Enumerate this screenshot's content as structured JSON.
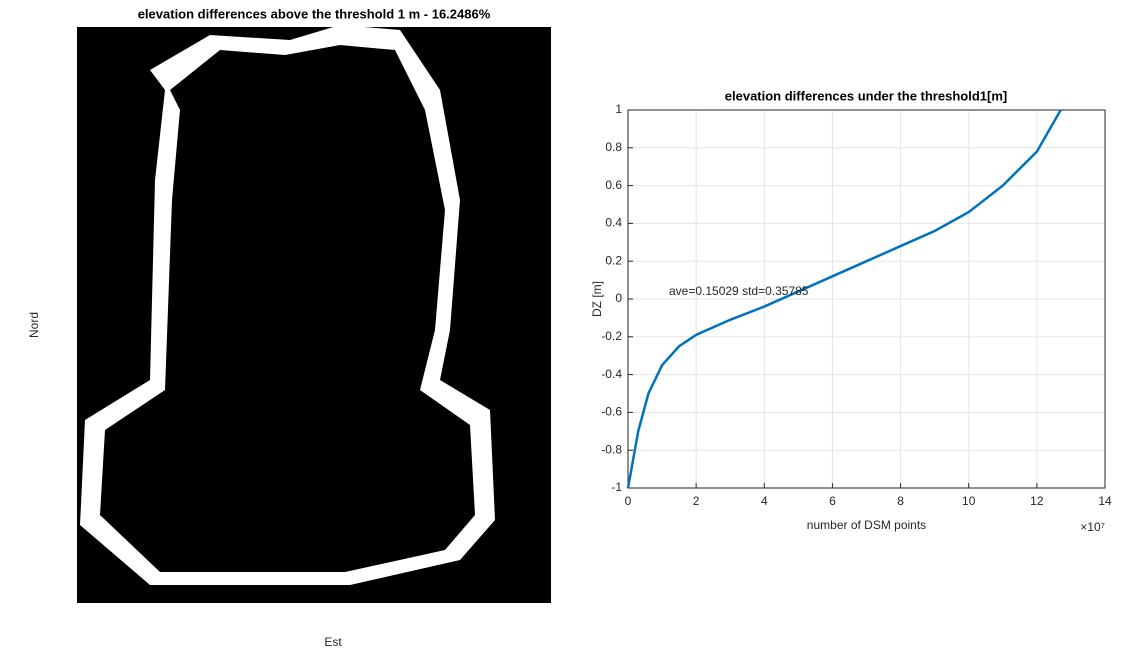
{
  "chart_data": [
    {
      "type": "image",
      "title": "elevation differences above the threshold 1 m - 16.2486%",
      "xlabel": "Est",
      "ylabel": "Nord"
    },
    {
      "type": "line",
      "title": "elevation differences under the threshold1[m]",
      "xlabel": "number of DSM points",
      "ylabel": "DZ [m]",
      "x_multiplier": "×10⁷",
      "annotation": "ave=0.15029  std=0.35785",
      "x": [
        0,
        0.1,
        0.3,
        0.6,
        1,
        1.5,
        2,
        3,
        4,
        5,
        6,
        7,
        8,
        9,
        10,
        11,
        12,
        12.7
      ],
      "values": [
        -1,
        -0.9,
        -0.7,
        -0.5,
        -0.35,
        -0.25,
        -0.19,
        -0.11,
        -0.04,
        0.04,
        0.12,
        0.2,
        0.28,
        0.36,
        0.46,
        0.6,
        0.78,
        1
      ],
      "color": "#0072bd",
      "xlim": [
        0,
        14
      ],
      "xticks": [
        0,
        2,
        4,
        6,
        8,
        10,
        12,
        14
      ],
      "ylim": [
        -1,
        1
      ],
      "yticks": [
        -1,
        -0.8,
        -0.6,
        -0.4,
        -0.2,
        0,
        0.2,
        0.4,
        0.6,
        0.8,
        1
      ],
      "grid": true
    }
  ]
}
